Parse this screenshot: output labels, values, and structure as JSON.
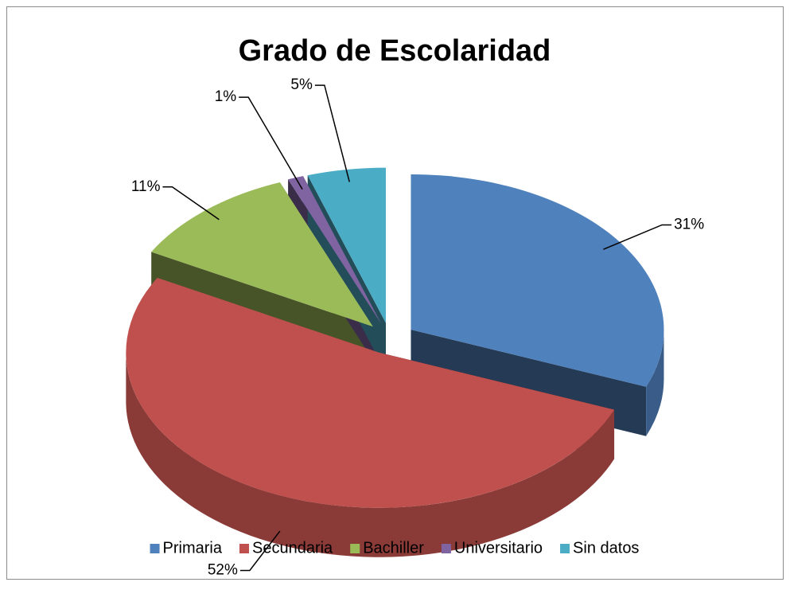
{
  "chart_data": {
    "type": "pie",
    "title": "Grado de Escolaridad",
    "categories": [
      "Primaria",
      "Secundaria",
      "Bachiller",
      "Universitario",
      "Sin datos"
    ],
    "values": [
      31,
      52,
      11,
      1,
      5
    ],
    "value_labels": [
      "31%",
      "52%",
      "11%",
      "1%",
      "5%"
    ],
    "colors": [
      "#4f81bd",
      "#c0504d",
      "#9bbb59",
      "#8064a2",
      "#4bacc6"
    ],
    "legend": "bottom",
    "exploded": true,
    "three_d": true
  }
}
